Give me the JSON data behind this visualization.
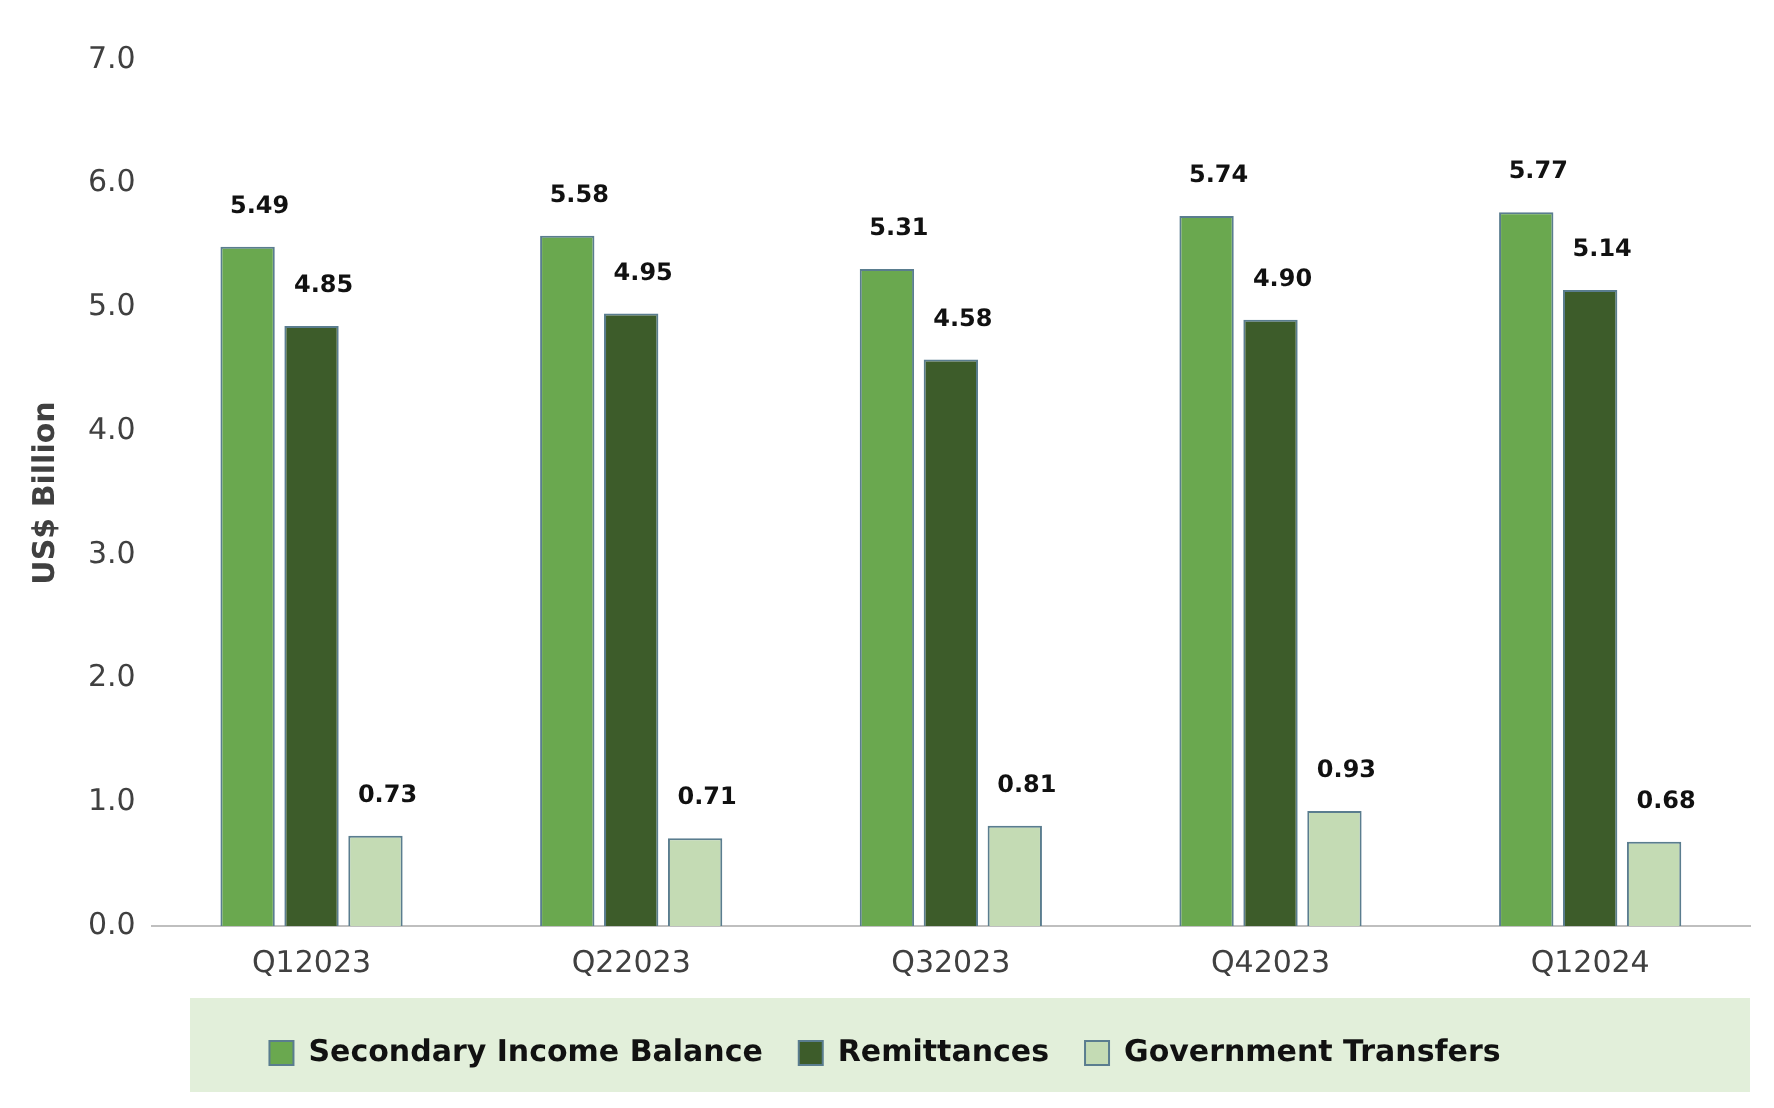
{
  "chart_data": {
    "type": "bar",
    "ylabel": "US$ Billion",
    "categories": [
      "Q12023",
      "Q22023",
      "Q32023",
      "Q42023",
      "Q12024"
    ],
    "series": [
      {
        "name": "Secondary Income Balance",
        "color": "#6aa84f",
        "values": [
          5.49,
          5.58,
          5.31,
          5.74,
          5.77
        ],
        "value_labels": [
          "5.49",
          "5.58",
          "5.31",
          "5.74",
          "5.77"
        ]
      },
      {
        "name": "Remittances",
        "color": "#3d5c2a",
        "values": [
          4.85,
          4.95,
          4.58,
          4.9,
          5.14
        ],
        "value_labels": [
          "4.85",
          "4.95",
          "4.58",
          "4.90",
          "5.14"
        ]
      },
      {
        "name": "Government Transfers",
        "color": "#c4dbb4",
        "values": [
          0.73,
          0.71,
          0.81,
          0.93,
          0.68
        ],
        "value_labels": [
          "0.73",
          "0.71",
          "0.81",
          "0.93",
          "0.68"
        ]
      }
    ],
    "ylim": [
      0,
      7
    ],
    "yticks": [
      {
        "value": 0,
        "label": "0.0"
      },
      {
        "value": 1,
        "label": "1.0"
      },
      {
        "value": 2,
        "label": "2.0"
      },
      {
        "value": 3,
        "label": "3.0"
      },
      {
        "value": 4,
        "label": "4.0"
      },
      {
        "value": 5,
        "label": "5.0"
      },
      {
        "value": 6,
        "label": "6.0"
      },
      {
        "value": 7,
        "label": "7.0"
      }
    ],
    "grid": false,
    "legend": "bottom"
  }
}
